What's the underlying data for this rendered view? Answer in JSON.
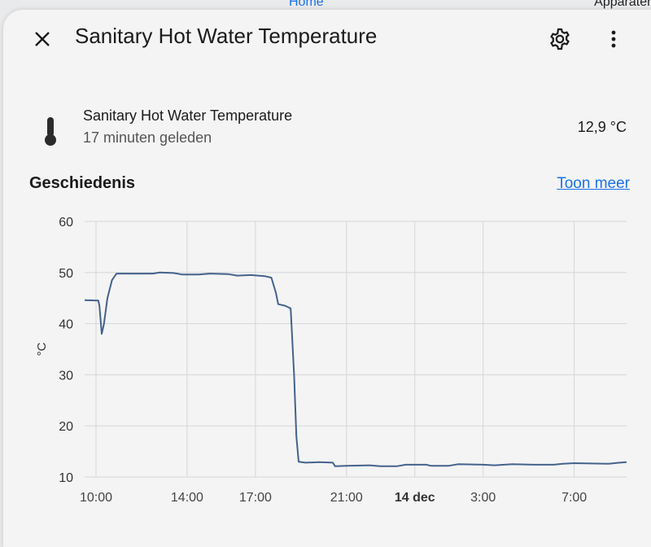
{
  "background": {
    "tab_home": "Home",
    "tab_devices": "Apparaten"
  },
  "dialog": {
    "title": "Sanitary Hot Water Temperature",
    "close_icon": "close-icon",
    "settings_icon": "gear-icon",
    "more_icon": "more-vertical-icon"
  },
  "entity": {
    "icon": "thermometer-icon",
    "name": "Sanitary Hot Water Temperature",
    "last_changed": "17 minuten geleden",
    "state": "12,9 °C"
  },
  "history": {
    "title": "Geschiedenis",
    "show_more": "Toon meer"
  },
  "colors": {
    "accent": "#1a73e8",
    "series": "#44628c",
    "grid": "#d3d6d9"
  },
  "chart_data": {
    "type": "line",
    "ylabel": "°C",
    "ylim": [
      10,
      60
    ],
    "yticks": [
      10,
      20,
      30,
      40,
      50,
      60
    ],
    "xticks": [
      {
        "label": "10:00",
        "hour": 10,
        "bold": false
      },
      {
        "label": "14:00",
        "hour": 14,
        "bold": false
      },
      {
        "label": "17:00",
        "hour": 17,
        "bold": false
      },
      {
        "label": "21:00",
        "hour": 21,
        "bold": false
      },
      {
        "label": "14 dec",
        "hour": 24,
        "bold": true
      },
      {
        "label": "3:00",
        "hour": 27,
        "bold": false
      },
      {
        "label": "7:00",
        "hour": 31,
        "bold": false
      }
    ],
    "xlim": [
      9.5,
      33.3
    ],
    "series": [
      {
        "name": "",
        "points": [
          [
            9.5,
            44.6
          ],
          [
            10.1,
            44.5
          ],
          [
            10.15,
            43.5
          ],
          [
            10.25,
            38.0
          ],
          [
            10.35,
            40.0
          ],
          [
            10.5,
            45.0
          ],
          [
            10.7,
            48.5
          ],
          [
            10.9,
            49.8
          ],
          [
            11.5,
            49.8
          ],
          [
            12.5,
            49.8
          ],
          [
            12.8,
            50.0
          ],
          [
            13.4,
            49.9
          ],
          [
            13.8,
            49.6
          ],
          [
            14.5,
            49.6
          ],
          [
            15.0,
            49.8
          ],
          [
            15.8,
            49.7
          ],
          [
            16.2,
            49.4
          ],
          [
            16.8,
            49.5
          ],
          [
            17.4,
            49.3
          ],
          [
            17.7,
            49.0
          ],
          [
            17.9,
            46.0
          ],
          [
            18.0,
            43.8
          ],
          [
            18.3,
            43.5
          ],
          [
            18.55,
            43.0
          ],
          [
            18.7,
            30.0
          ],
          [
            18.8,
            18.0
          ],
          [
            18.9,
            13.0
          ],
          [
            19.2,
            12.8
          ],
          [
            19.8,
            12.9
          ],
          [
            20.4,
            12.8
          ],
          [
            20.5,
            12.1
          ],
          [
            21.0,
            12.2
          ],
          [
            22.0,
            12.3
          ],
          [
            22.5,
            12.1
          ],
          [
            23.2,
            12.1
          ],
          [
            23.6,
            12.4
          ],
          [
            24.5,
            12.4
          ],
          [
            24.7,
            12.2
          ],
          [
            25.5,
            12.2
          ],
          [
            25.9,
            12.5
          ],
          [
            27.0,
            12.4
          ],
          [
            27.5,
            12.3
          ],
          [
            28.3,
            12.5
          ],
          [
            29.2,
            12.4
          ],
          [
            30.1,
            12.4
          ],
          [
            30.5,
            12.6
          ],
          [
            31.0,
            12.7
          ],
          [
            32.5,
            12.6
          ],
          [
            33.0,
            12.8
          ],
          [
            33.3,
            12.9
          ]
        ]
      }
    ]
  }
}
